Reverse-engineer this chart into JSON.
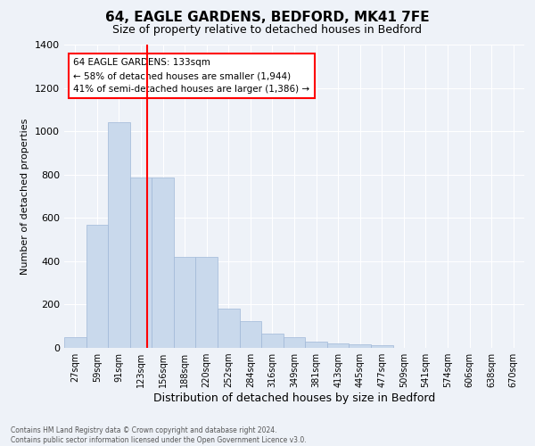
{
  "title1": "64, EAGLE GARDENS, BEDFORD, MK41 7FE",
  "title2": "Size of property relative to detached houses in Bedford",
  "xlabel": "Distribution of detached houses by size in Bedford",
  "ylabel": "Number of detached properties",
  "categories": [
    "27sqm",
    "59sqm",
    "91sqm",
    "123sqm",
    "156sqm",
    "188sqm",
    "220sqm",
    "252sqm",
    "284sqm",
    "316sqm",
    "349sqm",
    "381sqm",
    "413sqm",
    "445sqm",
    "477sqm",
    "509sqm",
    "541sqm",
    "574sqm",
    "606sqm",
    "638sqm",
    "670sqm"
  ],
  "values": [
    48,
    570,
    1040,
    785,
    785,
    420,
    420,
    180,
    125,
    65,
    50,
    28,
    22,
    18,
    13,
    0,
    0,
    0,
    0,
    0,
    0
  ],
  "bar_color": "#c9d9ec",
  "bar_edge_color": "#a0b8d8",
  "vline_color": "red",
  "annotation_text": "64 EAGLE GARDENS: 133sqm\n← 58% of detached houses are smaller (1,944)\n41% of semi-detached houses are larger (1,386) →",
  "annotation_box_color": "white",
  "annotation_box_edge": "red",
  "ylim": [
    0,
    1400
  ],
  "yticks": [
    0,
    200,
    400,
    600,
    800,
    1000,
    1200,
    1400
  ],
  "footnote": "Contains HM Land Registry data © Crown copyright and database right 2024.\nContains public sector information licensed under the Open Government Licence v3.0.",
  "bg_color": "#eef2f8",
  "grid_color": "white"
}
